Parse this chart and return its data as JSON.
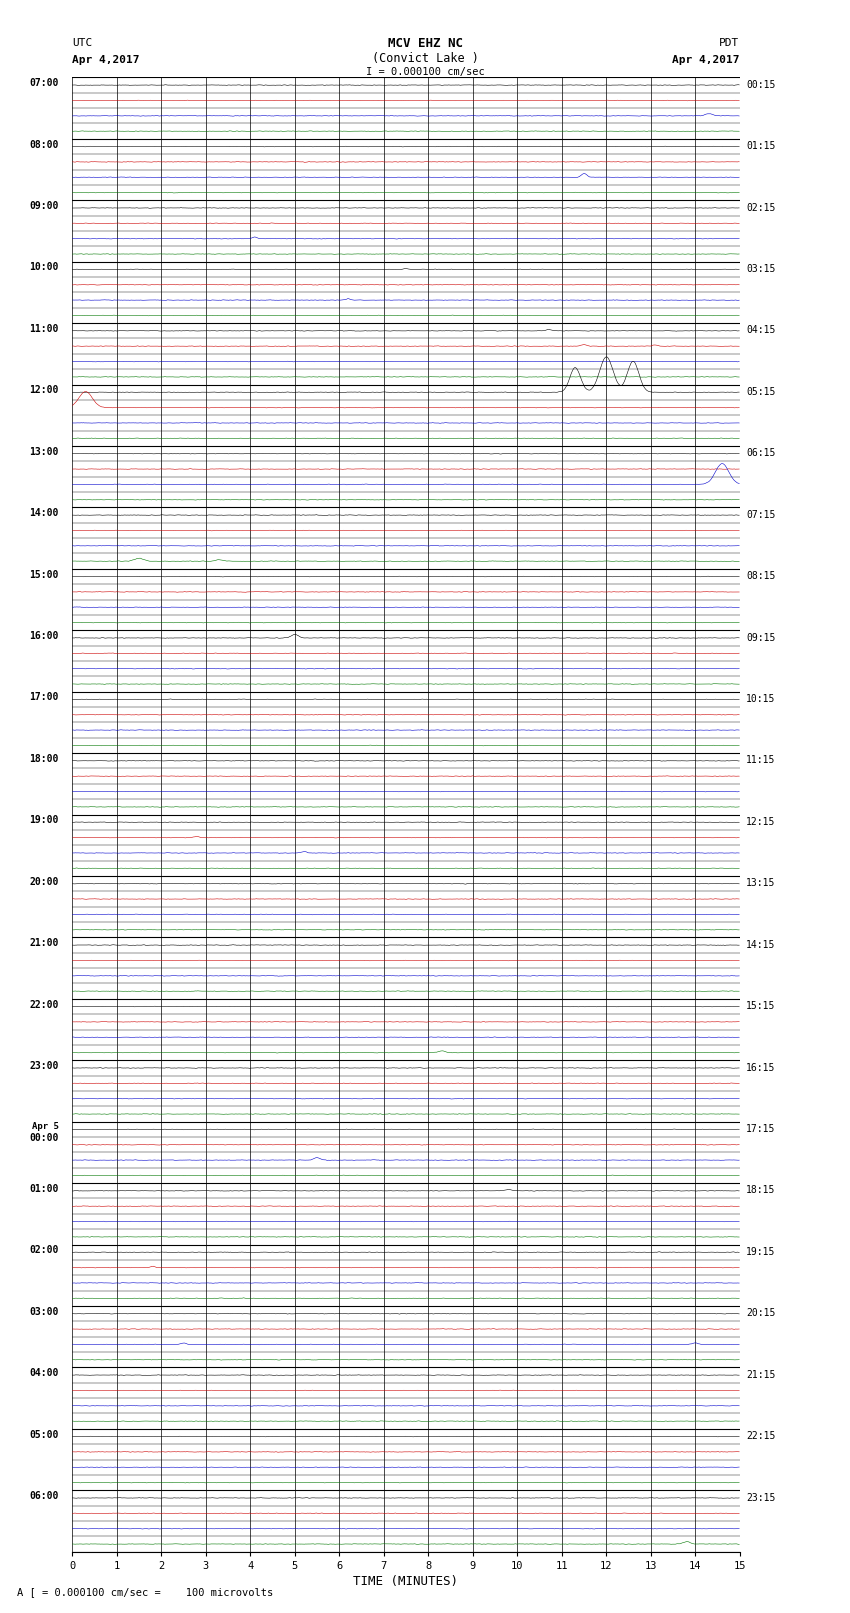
{
  "title_line1": "MCV EHZ NC",
  "title_line2": "(Convict Lake )",
  "scale_label": "I = 0.000100 cm/sec",
  "left_header": "UTC",
  "right_header": "PDT",
  "date_left": "Apr 4,2017",
  "date_right": "Apr 4,2017",
  "num_rows": 24,
  "traces_per_row": 4,
  "minutes_per_row": 15,
  "xlabel": "TIME (MINUTES)",
  "footer": "A [ = 0.000100 cm/sec =    100 microvolts",
  "background_color": "#ffffff",
  "trace_colors": [
    "#000000",
    "#cc0000",
    "#0000cc",
    "#007700"
  ],
  "noise_amplitude": 0.04,
  "hour_labels_left": [
    "07:00",
    "08:00",
    "09:00",
    "10:00",
    "11:00",
    "12:00",
    "13:00",
    "14:00",
    "15:00",
    "16:00",
    "17:00",
    "18:00",
    "19:00",
    "20:00",
    "21:00",
    "22:00",
    "23:00",
    "Apr 5\n00:00",
    "01:00",
    "02:00",
    "03:00",
    "04:00",
    "05:00",
    "06:00"
  ],
  "hour_labels_right": [
    "00:15",
    "01:15",
    "02:15",
    "03:15",
    "04:15",
    "05:15",
    "06:15",
    "07:15",
    "08:15",
    "09:15",
    "10:15",
    "11:15",
    "12:15",
    "13:15",
    "14:15",
    "15:15",
    "16:15",
    "17:15",
    "18:15",
    "19:15",
    "20:15",
    "21:15",
    "22:15",
    "23:15"
  ],
  "events": [
    {
      "group": 0,
      "trace": 2,
      "t": 14.3,
      "amp": 0.35,
      "wid": 0.08
    },
    {
      "group": 1,
      "trace": 2,
      "t": 11.5,
      "amp": 0.6,
      "wid": 0.06
    },
    {
      "group": 2,
      "trace": 2,
      "t": 4.1,
      "amp": 0.25,
      "wid": 0.05
    },
    {
      "group": 3,
      "trace": 0,
      "t": 7.5,
      "amp": 0.12,
      "wid": 0.05
    },
    {
      "group": 3,
      "trace": 2,
      "t": 6.2,
      "amp": 0.18,
      "wid": 0.05
    },
    {
      "group": 4,
      "trace": 0,
      "t": 10.7,
      "amp": 0.2,
      "wid": 0.06
    },
    {
      "group": 4,
      "trace": 1,
      "t": 11.5,
      "amp": 0.25,
      "wid": 0.06
    },
    {
      "group": 4,
      "trace": 1,
      "t": 13.1,
      "amp": 0.22,
      "wid": 0.06
    },
    {
      "group": 5,
      "trace": 0,
      "t": 11.3,
      "amp": 3.8,
      "wid": 0.12
    },
    {
      "group": 5,
      "trace": 0,
      "t": 12.0,
      "amp": 5.5,
      "wid": 0.15
    },
    {
      "group": 5,
      "trace": 0,
      "t": 12.6,
      "amp": 4.8,
      "wid": 0.13
    },
    {
      "group": 5,
      "trace": 1,
      "t": 0.3,
      "amp": 2.5,
      "wid": 0.15
    },
    {
      "group": 6,
      "trace": 2,
      "t": 14.6,
      "amp": 3.2,
      "wid": 0.15
    },
    {
      "group": 7,
      "trace": 3,
      "t": 1.5,
      "amp": 0.45,
      "wid": 0.1
    },
    {
      "group": 7,
      "trace": 3,
      "t": 3.3,
      "amp": 0.22,
      "wid": 0.08
    },
    {
      "group": 9,
      "trace": 0,
      "t": 5.0,
      "amp": 0.55,
      "wid": 0.08
    },
    {
      "group": 12,
      "trace": 1,
      "t": 2.8,
      "amp": 0.18,
      "wid": 0.06
    },
    {
      "group": 12,
      "trace": 2,
      "t": 5.2,
      "amp": 0.22,
      "wid": 0.06
    },
    {
      "group": 15,
      "trace": 3,
      "t": 8.3,
      "amp": 0.28,
      "wid": 0.07
    },
    {
      "group": 17,
      "trace": 2,
      "t": 5.5,
      "amp": 0.38,
      "wid": 0.07
    },
    {
      "group": 18,
      "trace": 0,
      "t": 9.8,
      "amp": 0.22,
      "wid": 0.06
    },
    {
      "group": 19,
      "trace": 1,
      "t": 1.8,
      "amp": 0.18,
      "wid": 0.06
    },
    {
      "group": 20,
      "trace": 2,
      "t": 2.5,
      "amp": 0.2,
      "wid": 0.06
    },
    {
      "group": 20,
      "trace": 2,
      "t": 14.0,
      "amp": 0.22,
      "wid": 0.06
    },
    {
      "group": 23,
      "trace": 3,
      "t": 13.8,
      "amp": 0.35,
      "wid": 0.08
    }
  ]
}
